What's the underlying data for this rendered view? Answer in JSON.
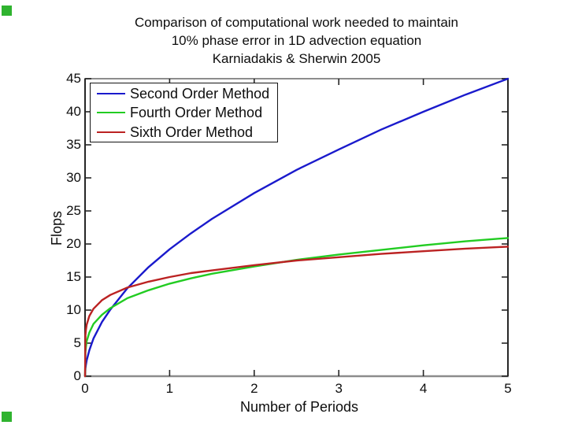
{
  "page": {
    "background": "#ffffff"
  },
  "corner_markers": {
    "color": "#2fb32f",
    "top_left": true,
    "bottom_left": true
  },
  "chart_data": {
    "type": "line",
    "title_lines": [
      "Comparison of computational work needed to maintain",
      "10% phase error in 1D advection equation",
      "Karniadakis & Sherwin 2005"
    ],
    "xlabel": "Number of Periods",
    "ylabel": "Flops",
    "xlim": [
      0,
      5
    ],
    "ylim": [
      0,
      45
    ],
    "x_ticks": [
      0,
      1,
      2,
      3,
      4,
      5
    ],
    "y_ticks": [
      0,
      5,
      10,
      15,
      20,
      25,
      30,
      35,
      40,
      45
    ],
    "grid": false,
    "legend_position": "top-left",
    "axis_color": "#262626",
    "frame_gray": "#8c8c8c",
    "x": [
      0,
      0.005,
      0.01,
      0.02,
      0.05,
      0.1,
      0.2,
      0.3,
      0.5,
      0.75,
      1,
      1.25,
      1.5,
      2,
      2.5,
      3,
      3.5,
      4,
      4.5,
      5
    ],
    "series": [
      {
        "name": "Second Order Method",
        "color": "#1a1acc",
        "values": [
          0,
          1.2,
          1.7,
          2.4,
          3.9,
          5.7,
          8.2,
          10.1,
          13.3,
          16.5,
          19.2,
          21.6,
          23.8,
          27.7,
          31.2,
          34.3,
          37.3,
          40.0,
          42.6,
          45.0
        ]
      },
      {
        "name": "Fourth Order Method",
        "color": "#22cc22",
        "values": [
          0,
          3.7,
          4.4,
          5.3,
          6.6,
          7.9,
          9.3,
          10.3,
          11.8,
          13.0,
          14.0,
          14.8,
          15.5,
          16.6,
          17.6,
          18.4,
          19.1,
          19.8,
          20.4,
          20.9
        ]
      },
      {
        "name": "Sixth Order Method",
        "color": "#bb2222",
        "values": [
          0,
          6.2,
          7.0,
          7.8,
          9.1,
          10.2,
          11.5,
          12.3,
          13.4,
          14.3,
          15.0,
          15.6,
          16.0,
          16.8,
          17.5,
          18.0,
          18.5,
          18.9,
          19.3,
          19.6
        ]
      }
    ]
  }
}
